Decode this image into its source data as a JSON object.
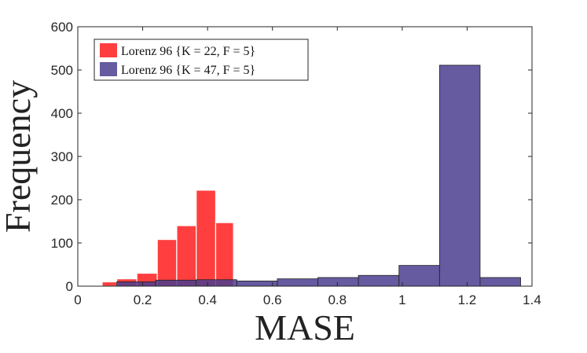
{
  "chart_data": {
    "type": "bar",
    "xlabel": "MASE",
    "ylabel": "Frequency",
    "xlim": [
      0,
      1.4
    ],
    "ylim": [
      0,
      600
    ],
    "xticks": [
      "0",
      "0.2",
      "0.4",
      "0.6",
      "0.8",
      "1",
      "1.2",
      "1.4"
    ],
    "xtick_values": [
      0,
      0.2,
      0.4,
      0.6,
      0.8,
      1,
      1.2,
      1.4
    ],
    "yticks": [
      "0",
      "100",
      "200",
      "300",
      "400",
      "500",
      "600"
    ],
    "ytick_values": [
      0,
      100,
      200,
      300,
      400,
      500,
      600
    ],
    "legend_position": "top-left",
    "series": [
      {
        "name": "Lorenz 96 {K = 22, F = 5}",
        "color": "#ff2a2a",
        "bins": [
          {
            "x0": 0.075,
            "x1": 0.12,
            "value": 10
          },
          {
            "x0": 0.12,
            "x1": 0.182,
            "value": 17
          },
          {
            "x0": 0.182,
            "x1": 0.245,
            "value": 30
          },
          {
            "x0": 0.245,
            "x1": 0.305,
            "value": 108
          },
          {
            "x0": 0.305,
            "x1": 0.365,
            "value": 140
          },
          {
            "x0": 0.365,
            "x1": 0.425,
            "value": 222
          },
          {
            "x0": 0.425,
            "x1": 0.48,
            "value": 147
          }
        ]
      },
      {
        "name": "Lorenz 96 {K = 47, F = 5}",
        "color": "#4b3d8f",
        "bins": [
          {
            "x0": 0.12,
            "x1": 0.24,
            "value": 10
          },
          {
            "x0": 0.24,
            "x1": 0.365,
            "value": 14
          },
          {
            "x0": 0.365,
            "x1": 0.49,
            "value": 15
          },
          {
            "x0": 0.49,
            "x1": 0.615,
            "value": 12
          },
          {
            "x0": 0.615,
            "x1": 0.74,
            "value": 17
          },
          {
            "x0": 0.74,
            "x1": 0.865,
            "value": 20
          },
          {
            "x0": 0.865,
            "x1": 0.99,
            "value": 25
          },
          {
            "x0": 0.99,
            "x1": 1.115,
            "value": 48
          },
          {
            "x0": 1.115,
            "x1": 1.24,
            "value": 511
          },
          {
            "x0": 1.24,
            "x1": 1.365,
            "value": 20
          }
        ]
      }
    ]
  }
}
